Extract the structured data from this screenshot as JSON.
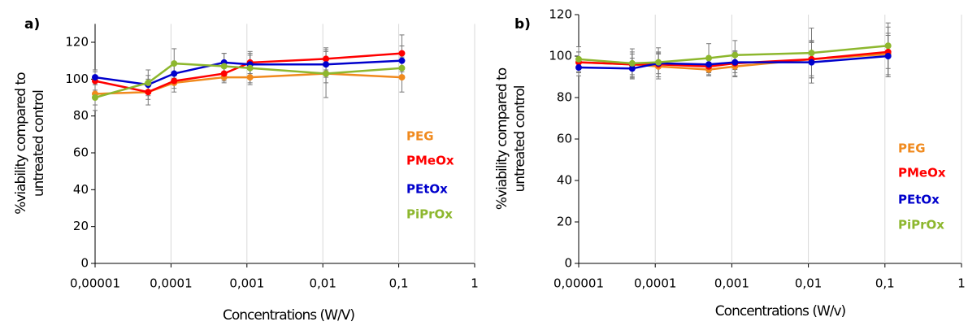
{
  "chart_data": [
    {
      "type": "line",
      "title": "a)",
      "x_label": "Concentrations (W/V)",
      "y_label": [
        "%viability compared to",
        "untreated control"
      ],
      "xscale": "log",
      "xlim": [
        1e-05,
        1
      ],
      "xticks": [
        {
          "value": 1e-05,
          "label": "0,00001"
        },
        {
          "value": 0.0001,
          "label": "0,0001"
        },
        {
          "value": 0.001,
          "label": "0,001"
        },
        {
          "value": 0.01,
          "label": "0,01"
        },
        {
          "value": 0.1,
          "label": "0,1"
        },
        1
      ],
      "ylim": [
        0,
        130
      ],
      "yticks": [
        0,
        20,
        40,
        60,
        80,
        100,
        120
      ],
      "grid": "x",
      "x": [
        1e-05,
        5e-05,
        0.00011,
        0.0005,
        0.0011,
        0.011,
        0.11
      ],
      "series": [
        {
          "name": "PEG",
          "color": "#f08a1e",
          "values": [
            92,
            93,
            98,
            101,
            101,
            103,
            101
          ],
          "errors": [
            6,
            7,
            5,
            3,
            4,
            5,
            8
          ]
        },
        {
          "name": "PMeOx",
          "color": "#ff0000",
          "values": [
            99,
            93,
            99,
            103,
            109,
            111,
            114
          ],
          "errors": [
            5,
            4,
            4,
            4,
            6,
            6,
            10
          ]
        },
        {
          "name": "PEtOx",
          "color": "#0000cc",
          "values": [
            101,
            97,
            103,
            109,
            108,
            108,
            110
          ],
          "errors": [
            4,
            5,
            5,
            5,
            5,
            7,
            8
          ]
        },
        {
          "name": "PiPrOx",
          "color": "#8db72e",
          "values": [
            90,
            98,
            108.5,
            107,
            106,
            103,
            106
          ],
          "errors": [
            7,
            7,
            8,
            7,
            8,
            13,
            6
          ]
        }
      ]
    },
    {
      "type": "line",
      "title": "b)",
      "x_label": "Concentrations (W/v)",
      "y_label": [
        "%viability compared to",
        "untreated control"
      ],
      "xscale": "log",
      "xlim": [
        1e-05,
        1
      ],
      "xticks": [
        {
          "value": 1e-05,
          "label": "0,00001"
        },
        {
          "value": 0.0001,
          "label": "0,0001"
        },
        {
          "value": 0.001,
          "label": "0,001"
        },
        {
          "value": 0.01,
          "label": "0,01"
        },
        {
          "value": 0.1,
          "label": "0,1"
        },
        1
      ],
      "ylim": [
        0,
        120
      ],
      "yticks": [
        0,
        20,
        40,
        60,
        80,
        100,
        120
      ],
      "grid": "x",
      "x": [
        1e-05,
        5e-05,
        0.00011,
        0.0005,
        0.0011,
        0.011,
        0.11
      ],
      "series": [
        {
          "name": "PEG",
          "color": "#f08a1e",
          "values": [
            97,
            96,
            95,
            93.5,
            95,
            98.5,
            101
          ],
          "errors": [
            5,
            6,
            6,
            3,
            5,
            8,
            10
          ]
        },
        {
          "name": "PMeOx",
          "color": "#ff0000",
          "values": [
            97,
            96,
            96,
            95,
            96.5,
            98.5,
            102
          ],
          "errors": [
            5,
            5,
            6,
            4,
            6,
            9,
            12
          ]
        },
        {
          "name": "PEtOx",
          "color": "#0000cc",
          "values": [
            94.5,
            94,
            96.5,
            96,
            97,
            97,
            100
          ],
          "errors": [
            4,
            5,
            5,
            4,
            5,
            10,
            10
          ]
        },
        {
          "name": "PiPrOx",
          "color": "#8db72e",
          "values": [
            98.5,
            96.5,
            97,
            99,
            100.5,
            101.5,
            105
          ],
          "errors": [
            6,
            7,
            7,
            7,
            7,
            12,
            11
          ]
        }
      ]
    }
  ]
}
